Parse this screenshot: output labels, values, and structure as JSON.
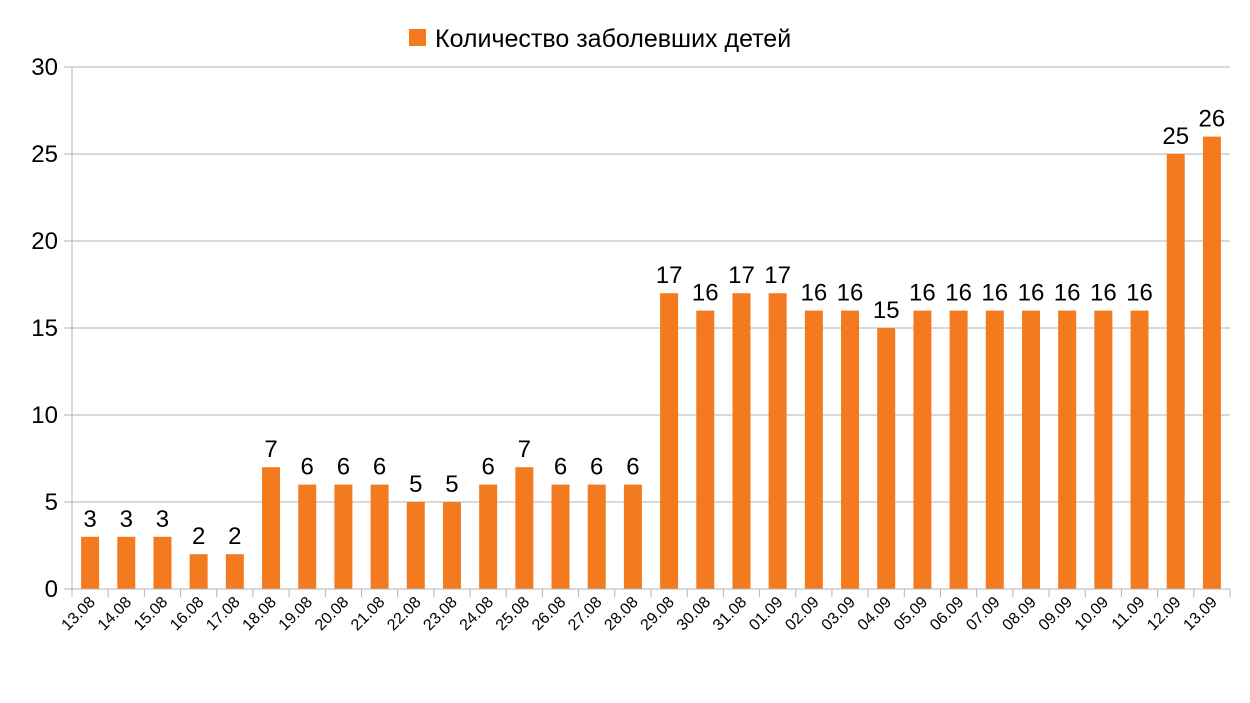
{
  "chart_data": {
    "type": "bar",
    "title": "",
    "xlabel": "",
    "ylabel": "",
    "ylim": [
      0,
      30
    ],
    "yticks": [
      0,
      5,
      10,
      15,
      20,
      25,
      30
    ],
    "grid": true,
    "legend_position": "top",
    "categories": [
      "13.08",
      "14.08",
      "15.08",
      "16.08",
      "17.08",
      "18.08",
      "19.08",
      "20.08",
      "21.08",
      "22.08",
      "23.08",
      "24.08",
      "25.08",
      "26.08",
      "27.08",
      "28.08",
      "29.08",
      "30.08",
      "31.08",
      "01.09",
      "02.09",
      "03.09",
      "04.09",
      "05.09",
      "06.09",
      "07.09",
      "08.09",
      "09.09",
      "10.09",
      "11.09",
      "12.09",
      "13.09"
    ],
    "series": [
      {
        "name": "Количество заболевших детей",
        "color": "#f47a20",
        "values": [
          3,
          3,
          3,
          2,
          2,
          7,
          6,
          6,
          6,
          5,
          5,
          6,
          7,
          6,
          6,
          6,
          17,
          16,
          17,
          17,
          16,
          16,
          15,
          16,
          16,
          16,
          16,
          16,
          16,
          16,
          25,
          26
        ]
      }
    ]
  }
}
